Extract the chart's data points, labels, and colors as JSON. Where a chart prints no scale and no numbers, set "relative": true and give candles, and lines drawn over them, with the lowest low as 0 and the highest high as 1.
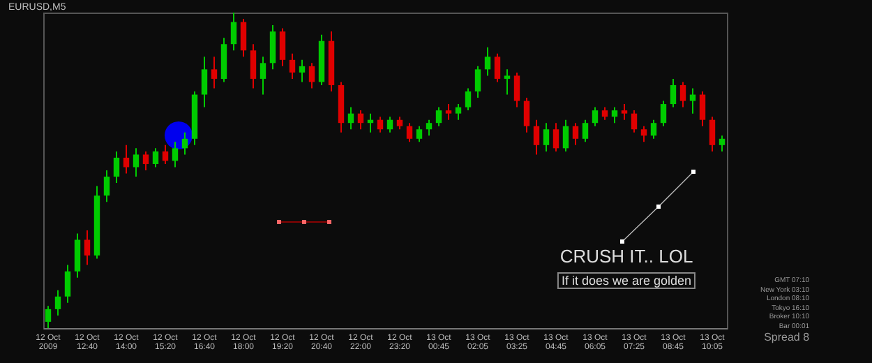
{
  "chart_data": {
    "type": "candlestick",
    "title": "EURUSD,M5",
    "relative": true,
    "grid": false,
    "categories": [
      "12 Oct 2009",
      null,
      null,
      null,
      "12 Oct 12:40",
      null,
      null,
      null,
      "12 Oct 14:00",
      null,
      null,
      null,
      "12 Oct 15:20",
      null,
      null,
      null,
      "12 Oct 16:40",
      null,
      null,
      null,
      "12 Oct 18:00",
      null,
      null,
      null,
      "12 Oct 19:20",
      null,
      null,
      null,
      "12 Oct 20:40",
      null,
      null,
      null,
      "12 Oct 22:00",
      null,
      null,
      null,
      "12 Oct 23:20",
      null,
      null,
      null,
      "13 Oct 00:45",
      null,
      null,
      null,
      "13 Oct 02:05",
      null,
      null,
      null,
      "13 Oct 03:25",
      null,
      null,
      null,
      "13 Oct 04:45",
      null,
      null,
      null,
      "13 Oct 06:05",
      null,
      null,
      null,
      "13 Oct 07:25",
      null,
      null,
      null,
      "13 Oct 08:45",
      null,
      null,
      null,
      "13 Oct 10:05",
      null
    ],
    "ohlc": [
      [
        0.02,
        0.07,
        0,
        0.06
      ],
      [
        0.06,
        0.12,
        0.04,
        0.1
      ],
      [
        0.1,
        0.2,
        0.08,
        0.18
      ],
      [
        0.18,
        0.3,
        0.16,
        0.28
      ],
      [
        0.28,
        0.31,
        0.2,
        0.23
      ],
      [
        0.23,
        0.45,
        0.22,
        0.42
      ],
      [
        0.42,
        0.5,
        0.4,
        0.48
      ],
      [
        0.48,
        0.56,
        0.46,
        0.54
      ],
      [
        0.54,
        0.58,
        0.49,
        0.51
      ],
      [
        0.51,
        0.57,
        0.48,
        0.55
      ],
      [
        0.55,
        0.56,
        0.5,
        0.52
      ],
      [
        0.52,
        0.57,
        0.51,
        0.56
      ],
      [
        0.56,
        0.58,
        0.52,
        0.53
      ],
      [
        0.53,
        0.59,
        0.51,
        0.57
      ],
      [
        0.57,
        0.62,
        0.55,
        0.6
      ],
      [
        0.6,
        0.75,
        0.58,
        0.74
      ],
      [
        0.74,
        0.86,
        0.7,
        0.82
      ],
      [
        0.82,
        0.86,
        0.76,
        0.79
      ],
      [
        0.79,
        0.92,
        0.78,
        0.9
      ],
      [
        0.9,
        1.0,
        0.88,
        0.97
      ],
      [
        0.97,
        0.98,
        0.86,
        0.88
      ],
      [
        0.88,
        0.9,
        0.76,
        0.79
      ],
      [
        0.79,
        0.86,
        0.74,
        0.84
      ],
      [
        0.84,
        0.96,
        0.82,
        0.94
      ],
      [
        0.94,
        0.95,
        0.83,
        0.85
      ],
      [
        0.85,
        0.87,
        0.79,
        0.81
      ],
      [
        0.81,
        0.85,
        0.78,
        0.83
      ],
      [
        0.83,
        0.84,
        0.76,
        0.78
      ],
      [
        0.78,
        0.93,
        0.77,
        0.91
      ],
      [
        0.91,
        0.94,
        0.75,
        0.77
      ],
      [
        0.77,
        0.78,
        0.62,
        0.65
      ],
      [
        0.65,
        0.7,
        0.63,
        0.68
      ],
      [
        0.68,
        0.69,
        0.63,
        0.65
      ],
      [
        0.65,
        0.68,
        0.62,
        0.66
      ],
      [
        0.66,
        0.67,
        0.62,
        0.63
      ],
      [
        0.63,
        0.67,
        0.62,
        0.66
      ],
      [
        0.66,
        0.67,
        0.63,
        0.64
      ],
      [
        0.64,
        0.65,
        0.59,
        0.6
      ],
      [
        0.6,
        0.64,
        0.59,
        0.63
      ],
      [
        0.63,
        0.66,
        0.61,
        0.65
      ],
      [
        0.65,
        0.7,
        0.64,
        0.69
      ],
      [
        0.69,
        0.71,
        0.66,
        0.68
      ],
      [
        0.68,
        0.71,
        0.66,
        0.7
      ],
      [
        0.7,
        0.76,
        0.69,
        0.75
      ],
      [
        0.75,
        0.83,
        0.73,
        0.82
      ],
      [
        0.82,
        0.89,
        0.8,
        0.86
      ],
      [
        0.86,
        0.87,
        0.78,
        0.79
      ],
      [
        0.79,
        0.82,
        0.74,
        0.8
      ],
      [
        0.8,
        0.81,
        0.7,
        0.72
      ],
      [
        0.72,
        0.73,
        0.62,
        0.64
      ],
      [
        0.64,
        0.66,
        0.55,
        0.58
      ],
      [
        0.58,
        0.65,
        0.56,
        0.63
      ],
      [
        0.63,
        0.65,
        0.56,
        0.57
      ],
      [
        0.57,
        0.66,
        0.56,
        0.64
      ],
      [
        0.64,
        0.65,
        0.58,
        0.6
      ],
      [
        0.6,
        0.66,
        0.59,
        0.65
      ],
      [
        0.65,
        0.7,
        0.64,
        0.69
      ],
      [
        0.69,
        0.7,
        0.66,
        0.67
      ],
      [
        0.67,
        0.7,
        0.65,
        0.69
      ],
      [
        0.69,
        0.71,
        0.66,
        0.68
      ],
      [
        0.68,
        0.69,
        0.62,
        0.63
      ],
      [
        0.63,
        0.64,
        0.59,
        0.61
      ],
      [
        0.61,
        0.66,
        0.6,
        0.65
      ],
      [
        0.65,
        0.72,
        0.64,
        0.71
      ],
      [
        0.71,
        0.79,
        0.7,
        0.77
      ],
      [
        0.77,
        0.78,
        0.7,
        0.72
      ],
      [
        0.72,
        0.76,
        0.68,
        0.74
      ],
      [
        0.74,
        0.75,
        0.64,
        0.66
      ],
      [
        0.66,
        0.67,
        0.56,
        0.58
      ],
      [
        0.58,
        0.61,
        0.56,
        0.6
      ]
    ],
    "colors": [
      "#00cc00",
      "#00cc00",
      "#00cc00",
      "#00cc00",
      "#e00000",
      "#00cc00",
      "#00cc00",
      "#00cc00",
      "#e00000",
      "#00cc00",
      "#e00000",
      "#00cc00",
      "#e00000",
      "#00cc00",
      "#00cc00",
      "#00cc00",
      "#00cc00",
      "#e00000",
      "#00cc00",
      "#00cc00",
      "#e00000",
      "#e00000",
      "#00cc00",
      "#00cc00",
      "#e00000",
      "#e00000",
      "#00cc00",
      "#e00000",
      "#00cc00",
      "#e00000",
      "#e00000",
      "#00cc00",
      "#e00000",
      "#00cc00",
      "#e00000",
      "#00cc00",
      "#e00000",
      "#e00000",
      "#00cc00",
      "#00cc00",
      "#00cc00",
      "#e00000",
      "#00cc00",
      "#00cc00",
      "#00cc00",
      "#00cc00",
      "#e00000",
      "#00cc00",
      "#e00000",
      "#e00000",
      "#e00000",
      "#00cc00",
      "#e00000",
      "#00cc00",
      "#e00000",
      "#00cc00",
      "#00cc00",
      "#e00000",
      "#00cc00",
      "#e00000",
      "#e00000",
      "#e00000",
      "#00cc00",
      "#00cc00",
      "#00cc00",
      "#e00000",
      "#00cc00",
      "#e00000",
      "#e00000",
      "#00cc00"
    ],
    "annotations": [
      "CRUSH IT.. LOL",
      "If it does we are golden",
      "GMT 07:10",
      "New York 03:10",
      "London 08:10",
      "Tokyo 16:10",
      "Broker 10:10",
      "Bar 00:01",
      "Spread 8"
    ]
  }
}
